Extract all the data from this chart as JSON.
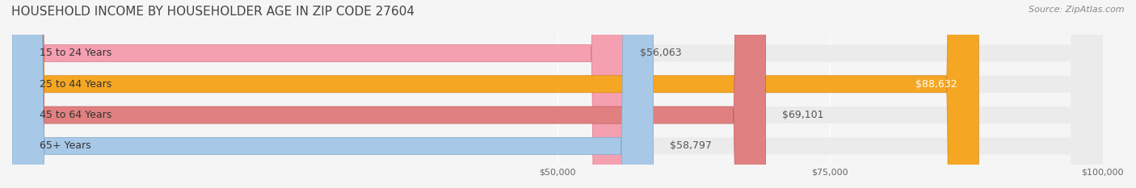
{
  "title": "HOUSEHOLD INCOME BY HOUSEHOLDER AGE IN ZIP CODE 27604",
  "source": "Source: ZipAtlas.com",
  "categories": [
    "15 to 24 Years",
    "25 to 44 Years",
    "45 to 64 Years",
    "65+ Years"
  ],
  "values": [
    56063,
    88632,
    69101,
    58797
  ],
  "bar_colors": [
    "#f4a0b0",
    "#f5a623",
    "#e08080",
    "#a8c8e8"
  ],
  "bar_edge_colors": [
    "#e07080",
    "#d4891a",
    "#c06060",
    "#80a8c8"
  ],
  "label_colors": [
    "#d06070",
    "#c07010",
    "#b05050",
    "#6090b0"
  ],
  "value_labels": [
    "$56,063",
    "$88,632",
    "$69,101",
    "$58,797"
  ],
  "xmin": 0,
  "xmax": 100000,
  "xticks": [
    50000,
    75000,
    100000
  ],
  "xticklabels": [
    "$50,000",
    "$75,000",
    "$100,000"
  ],
  "bar_height": 0.55,
  "background_color": "#f5f5f5",
  "bar_bg_color": "#ebebeb",
  "title_fontsize": 11,
  "source_fontsize": 8,
  "label_fontsize": 9,
  "value_fontsize": 9,
  "tick_fontsize": 8
}
